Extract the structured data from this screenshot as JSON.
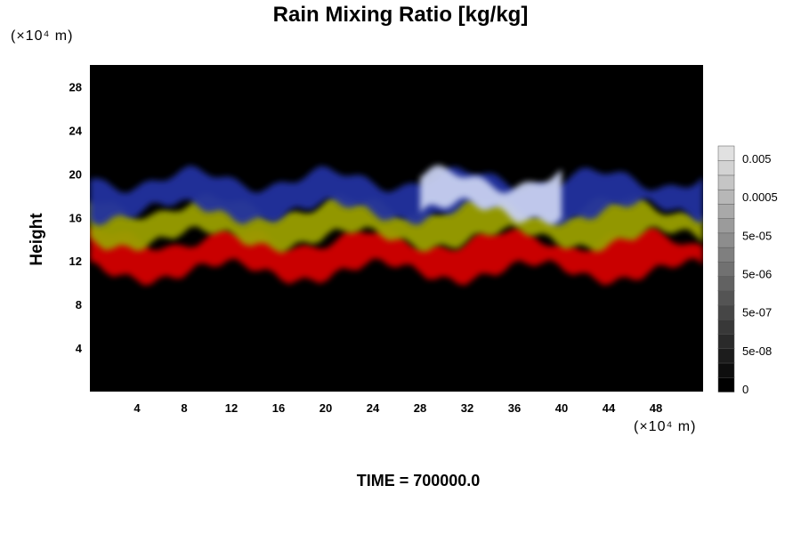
{
  "chart_data": {
    "type": "heatmap",
    "title": "Rain Mixing Ratio [kg/kg]",
    "ylabel": "Height",
    "unit_label": "(×10⁴ m)",
    "xlim": [
      0,
      52
    ],
    "ylim": [
      0,
      30
    ],
    "xticks": [
      "4",
      "8",
      "12",
      "16",
      "20",
      "24",
      "28",
      "32",
      "36",
      "40",
      "44",
      "48"
    ],
    "yticks": [
      "4",
      "8",
      "12",
      "16",
      "20",
      "24",
      "28"
    ],
    "xtick_values": [
      4,
      8,
      12,
      16,
      20,
      24,
      28,
      32,
      36,
      40,
      44,
      48
    ],
    "ytick_values": [
      4,
      8,
      12,
      16,
      20,
      24,
      28
    ],
    "colorbar": {
      "labels": [
        "0.005",
        "0.0005",
        "5e-05",
        "5e-06",
        "5e-07",
        "5e-08",
        "0"
      ],
      "levels": 17,
      "scale": "log"
    },
    "layers": [
      {
        "name": "red band",
        "color": "#d40000",
        "height_range": [
          11,
          14
        ]
      },
      {
        "name": "yellow-green band",
        "color": "#9aa000",
        "height_range": [
          14,
          17
        ]
      },
      {
        "name": "blue band",
        "color": "#2030a0",
        "height_range": [
          16.5,
          19.5
        ]
      },
      {
        "name": "light band",
        "color": "#c8d0f0",
        "x_range": [
          28,
          40
        ],
        "height_range": [
          16.5,
          19.5
        ]
      }
    ],
    "background_color": "#000000",
    "grid": false
  },
  "footer": {
    "time_label": "TIME = 700000.0"
  }
}
